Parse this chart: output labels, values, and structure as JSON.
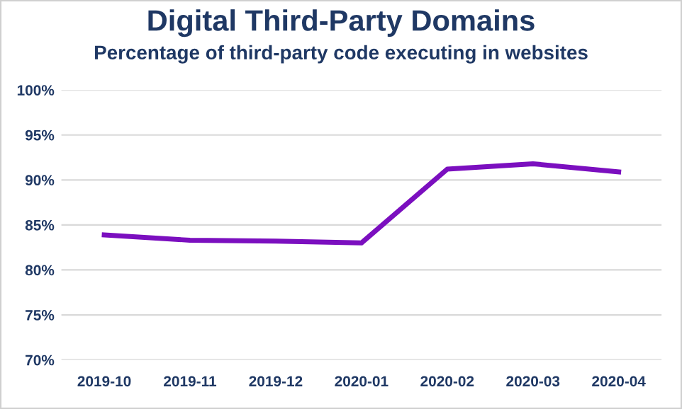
{
  "chart_data": {
    "type": "line",
    "title": "Digital Third-Party Domains",
    "subtitle": "Percentage of third-party code executing in websites",
    "categories": [
      "2019-10",
      "2019-11",
      "2019-12",
      "2020-01",
      "2020-02",
      "2020-03",
      "2020-04"
    ],
    "series": [
      {
        "color": "#7b0fbf",
        "values": [
          83.9,
          83.3,
          83.2,
          83.0,
          91.2,
          91.8,
          90.9
        ]
      }
    ],
    "ylim": [
      70,
      100
    ],
    "yticks": [
      {
        "value": 70,
        "label": "70%"
      },
      {
        "value": 75,
        "label": "75%"
      },
      {
        "value": 80,
        "label": "80%"
      },
      {
        "value": 85,
        "label": "85%"
      },
      {
        "value": 90,
        "label": "90%"
      },
      {
        "value": 95,
        "label": "95%"
      },
      {
        "value": 100,
        "label": "100%"
      }
    ],
    "grid": "y",
    "marker": "none",
    "line_style": "solid",
    "legend": false
  }
}
